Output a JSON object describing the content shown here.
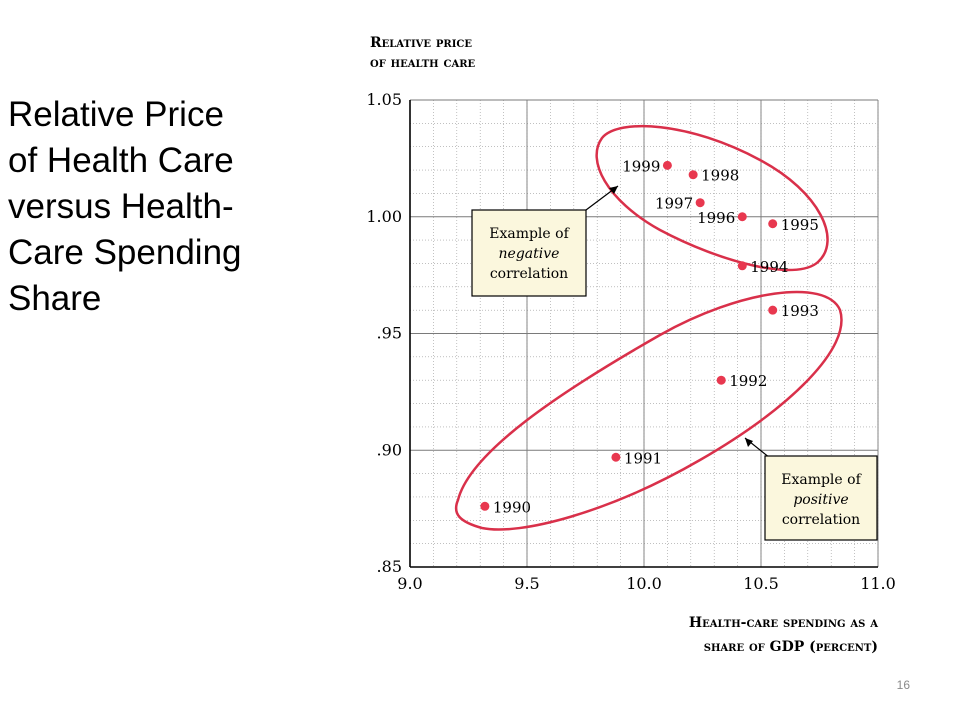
{
  "slide": {
    "title_lines": [
      "Relative Price",
      "of Health Care",
      "versus Health-",
      "Care Spending",
      "Share"
    ],
    "page_number": "16"
  },
  "chart_data": {
    "type": "scatter",
    "ylabel_lines": [
      "Relative price",
      "of health care"
    ],
    "xlabel_lines": [
      "Health-care spending as a",
      "share of GDP (percent)"
    ],
    "xlim": [
      9.0,
      11.0
    ],
    "ylim": [
      0.85,
      1.05
    ],
    "x_ticks": [
      9.0,
      9.5,
      10.0,
      10.5,
      11.0
    ],
    "x_tick_labels": [
      "9.0",
      "9.5",
      "10.0",
      "10.5",
      "11.0"
    ],
    "y_ticks": [
      0.85,
      0.9,
      0.95,
      1.0,
      1.05
    ],
    "y_tick_labels": [
      ".85",
      ".90",
      ".95",
      "1.00",
      "1.05"
    ],
    "grid": true,
    "point_color": "#e8384f",
    "ellipse_color": "#d9304a",
    "points": [
      {
        "label": "1990",
        "x": 9.32,
        "y": 0.876
      },
      {
        "label": "1991",
        "x": 9.88,
        "y": 0.897
      },
      {
        "label": "1992",
        "x": 10.33,
        "y": 0.93
      },
      {
        "label": "1993",
        "x": 10.55,
        "y": 0.96
      },
      {
        "label": "1994",
        "x": 10.42,
        "y": 0.979
      },
      {
        "label": "1995",
        "x": 10.55,
        "y": 0.997
      },
      {
        "label": "1996",
        "x": 10.42,
        "y": 1.0
      },
      {
        "label": "1997",
        "x": 10.24,
        "y": 1.006
      },
      {
        "label": "1998",
        "x": 10.21,
        "y": 1.018
      },
      {
        "label": "1999",
        "x": 10.1,
        "y": 1.022
      }
    ],
    "annotations": [
      {
        "id": "negative",
        "line1": "Example of",
        "line2": "negative",
        "line3": "correlation"
      },
      {
        "id": "positive",
        "line1": "Example of",
        "line2": "positive",
        "line3": "correlation"
      }
    ],
    "annotation_box_color": "#fbf7dd"
  }
}
